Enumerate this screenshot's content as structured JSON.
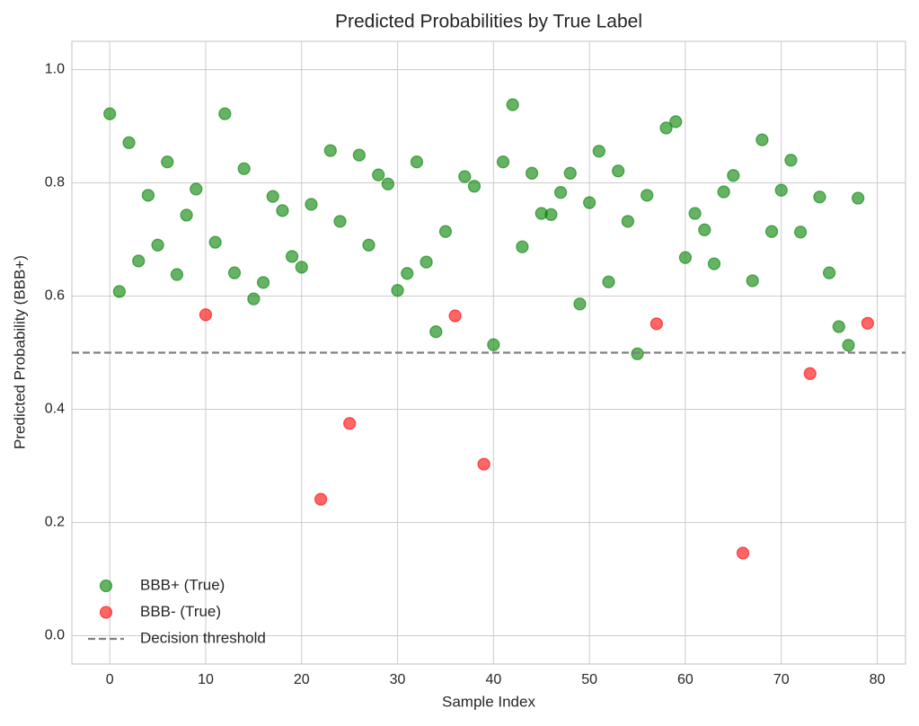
{
  "chart_data": {
    "type": "scatter",
    "title": "Predicted Probabilities by True Label",
    "x_label": "Sample Index",
    "y_label": "Predicted Probability (BBB+)",
    "xlim": [
      -3.95,
      82.95
    ],
    "ylim": [
      -0.05,
      1.05
    ],
    "xticks": [
      0,
      10,
      20,
      30,
      40,
      50,
      60,
      70,
      80
    ],
    "yticks": [
      {
        "value": 0,
        "label": "0.0"
      },
      0.2,
      0.4,
      0.6,
      0.8,
      {
        "value": 1,
        "label": "1.0"
      }
    ],
    "grid": true,
    "legend": "lower left",
    "series": [
      {
        "name": "BBB+ (True)",
        "color": "#008000",
        "x": [
          0,
          1,
          2,
          3,
          4,
          5,
          6,
          7,
          8,
          9,
          11,
          12,
          13,
          14,
          15,
          16,
          17,
          18,
          19,
          20,
          21,
          23,
          24,
          26,
          27,
          28,
          29,
          30,
          31,
          32,
          33,
          34,
          35,
          37,
          38,
          40,
          41,
          42,
          43,
          44,
          45,
          46,
          47,
          48,
          49,
          50,
          51,
          52,
          53,
          54,
          55,
          56,
          58,
          59,
          60,
          61,
          62,
          63,
          64,
          65,
          67,
          68,
          69,
          70,
          71,
          72,
          74,
          75,
          76,
          77,
          78
        ],
        "values": [
          0.922,
          0.608,
          0.871,
          0.662,
          0.778,
          0.69,
          0.837,
          0.638,
          0.743,
          0.789,
          0.695,
          0.922,
          0.641,
          0.825,
          0.595,
          0.624,
          0.776,
          0.751,
          0.67,
          0.651,
          0.762,
          0.857,
          0.732,
          0.849,
          0.69,
          0.814,
          0.798,
          0.61,
          0.64,
          0.837,
          0.66,
          0.537,
          0.714,
          0.811,
          0.794,
          0.514,
          0.837,
          0.938,
          0.687,
          0.817,
          0.746,
          0.744,
          0.783,
          0.817,
          0.586,
          0.765,
          0.856,
          0.625,
          0.821,
          0.732,
          0.498,
          0.778,
          0.897,
          0.908,
          0.668,
          0.746,
          0.717,
          0.657,
          0.784,
          0.813,
          0.627,
          0.876,
          0.714,
          0.787,
          0.84,
          0.713,
          0.775,
          0.641,
          0.546,
          0.513,
          0.773
        ]
      },
      {
        "name": "BBB- (True)",
        "color": "#ff0000",
        "x": [
          10,
          22,
          25,
          36,
          39,
          57,
          66,
          73,
          79
        ],
        "values": [
          0.567,
          0.241,
          0.375,
          0.565,
          0.303,
          0.551,
          0.146,
          0.463,
          0.552
        ]
      }
    ],
    "threshold": {
      "name": "Decision threshold",
      "value": 0.5,
      "color": "#808080"
    }
  }
}
